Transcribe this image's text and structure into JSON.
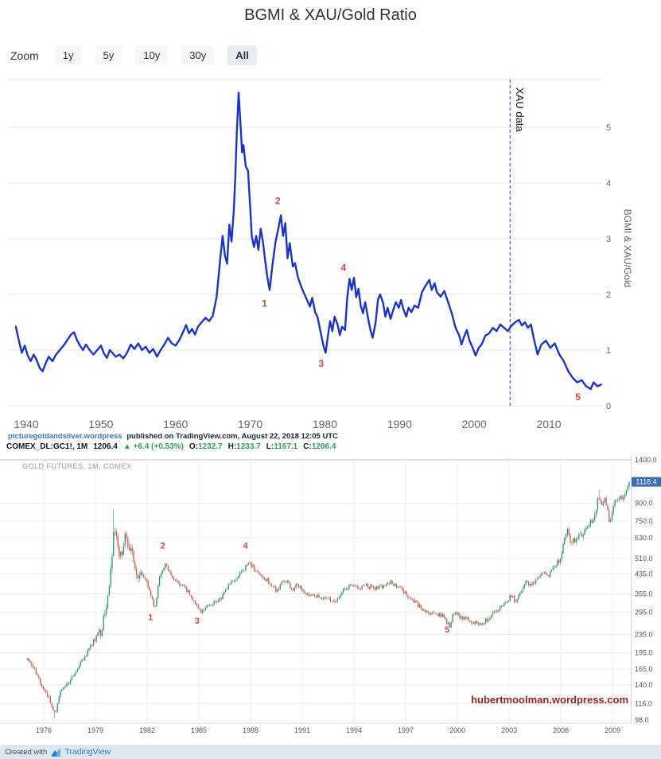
{
  "title": "BGMI & XAU/Gold Ratio",
  "zoom": {
    "label": "Zoom",
    "buttons": [
      "1y",
      "5y",
      "10y",
      "30y",
      "All"
    ],
    "selected": "All"
  },
  "attribution": {
    "source": "picturegoldandsilver.wordpress",
    "rest": "published on TradingView.com, August 22, 2018 12:05 UTC"
  },
  "tv_header": {
    "symbol": "COMEX_DL:GC1!, 1M",
    "last": "1206.4",
    "up_arrow": "▲",
    "change": "+6.4 (+0.53%)",
    "o_label": "O:",
    "o": "1232.7",
    "h_label": "H:",
    "h": "1233.7",
    "l_label": "L:",
    "l": "1167.1",
    "c_label": "C:",
    "c": "1206.4"
  },
  "footer": {
    "created_with": "Created with",
    "brand": "TradingView"
  },
  "colors": {
    "annotation": "#e0443a",
    "grid": "#ececec",
    "axis_text": "#666666"
  },
  "chart_data": [
    {
      "type": "line",
      "title": "BGMI & XAU/Gold Ratio",
      "ylabel": "BGMI & XAU/Gold",
      "y_ticks": [
        0,
        1,
        2,
        3,
        4,
        5
      ],
      "x_ticks": [
        1940,
        1950,
        1960,
        1970,
        1980,
        1990,
        2000,
        2010
      ],
      "x_range": [
        1937.6,
        2017.2
      ],
      "y_range": [
        0,
        5.86
      ],
      "grid": true,
      "legend": "none",
      "line_color": "#1b34d1",
      "vline": {
        "x": 2004.8,
        "label": "XAU data",
        "color": "#2438c8"
      },
      "annotations": [
        {
          "n": "1",
          "x": 1971.9,
          "y": 1.78
        },
        {
          "n": "2",
          "x": 1973.7,
          "y": 3.62
        },
        {
          "n": "3",
          "x": 1979.5,
          "y": 0.7
        },
        {
          "n": "4",
          "x": 1982.5,
          "y": 2.42
        },
        {
          "n": "5",
          "x": 2013.9,
          "y": 0.1
        }
      ],
      "points": [
        [
          1938.6,
          1.42
        ],
        [
          1939,
          1.18
        ],
        [
          1939.4,
          0.95
        ],
        [
          1939.8,
          1.08
        ],
        [
          1940.2,
          0.9
        ],
        [
          1940.6,
          0.8
        ],
        [
          1941,
          0.92
        ],
        [
          1941.4,
          0.82
        ],
        [
          1941.8,
          0.68
        ],
        [
          1942.2,
          0.62
        ],
        [
          1942.6,
          0.76
        ],
        [
          1943,
          0.88
        ],
        [
          1943.5,
          0.8
        ],
        [
          1944,
          0.92
        ],
        [
          1944.5,
          1.0
        ],
        [
          1945,
          1.08
        ],
        [
          1945.5,
          1.18
        ],
        [
          1946,
          1.28
        ],
        [
          1946.4,
          1.32
        ],
        [
          1946.8,
          1.18
        ],
        [
          1947.2,
          1.08
        ],
        [
          1947.6,
          1.0
        ],
        [
          1948,
          1.1
        ],
        [
          1948.5,
          1.0
        ],
        [
          1949,
          0.92
        ],
        [
          1949.5,
          1.0
        ],
        [
          1950,
          1.08
        ],
        [
          1950.4,
          0.94
        ],
        [
          1950.8,
          0.86
        ],
        [
          1951.2,
          1.0
        ],
        [
          1951.6,
          0.94
        ],
        [
          1952,
          0.88
        ],
        [
          1952.5,
          0.92
        ],
        [
          1953,
          0.85
        ],
        [
          1953.5,
          0.95
        ],
        [
          1954,
          1.1
        ],
        [
          1954.5,
          1.02
        ],
        [
          1955,
          1.12
        ],
        [
          1955.5,
          1.0
        ],
        [
          1956,
          1.06
        ],
        [
          1956.5,
          0.95
        ],
        [
          1957,
          1.02
        ],
        [
          1957.5,
          0.88
        ],
        [
          1958,
          1.0
        ],
        [
          1958.5,
          1.1
        ],
        [
          1959,
          1.22
        ],
        [
          1959.5,
          1.12
        ],
        [
          1960,
          1.08
        ],
        [
          1960.5,
          1.18
        ],
        [
          1961,
          1.32
        ],
        [
          1961.4,
          1.45
        ],
        [
          1961.8,
          1.3
        ],
        [
          1962.2,
          1.38
        ],
        [
          1962.6,
          1.28
        ],
        [
          1963,
          1.42
        ],
        [
          1963.5,
          1.5
        ],
        [
          1964,
          1.58
        ],
        [
          1964.5,
          1.52
        ],
        [
          1965,
          1.62
        ],
        [
          1965.5,
          1.95
        ],
        [
          1966,
          2.65
        ],
        [
          1966.3,
          3.05
        ],
        [
          1966.6,
          2.7
        ],
        [
          1966.9,
          2.55
        ],
        [
          1967.2,
          3.25
        ],
        [
          1967.5,
          2.95
        ],
        [
          1967.8,
          3.5
        ],
        [
          1968,
          4.1
        ],
        [
          1968.2,
          4.9
        ],
        [
          1968.45,
          5.62
        ],
        [
          1968.7,
          5.05
        ],
        [
          1968.9,
          4.55
        ],
        [
          1969.1,
          4.68
        ],
        [
          1969.4,
          4.3
        ],
        [
          1969.7,
          4.22
        ],
        [
          1970,
          3.55
        ],
        [
          1970.2,
          3.05
        ],
        [
          1970.5,
          2.85
        ],
        [
          1970.8,
          3.05
        ],
        [
          1971.1,
          2.8
        ],
        [
          1971.4,
          3.18
        ],
        [
          1971.7,
          2.95
        ],
        [
          1972,
          2.6
        ],
        [
          1972.3,
          2.3
        ],
        [
          1972.6,
          2.08
        ],
        [
          1973,
          2.55
        ],
        [
          1973.4,
          2.95
        ],
        [
          1973.8,
          3.2
        ],
        [
          1974.1,
          3.42
        ],
        [
          1974.4,
          3.05
        ],
        [
          1974.7,
          3.28
        ],
        [
          1975,
          2.65
        ],
        [
          1975.3,
          2.92
        ],
        [
          1975.7,
          2.5
        ],
        [
          1976,
          2.56
        ],
        [
          1976.4,
          2.3
        ],
        [
          1976.8,
          2.15
        ],
        [
          1977.2,
          2.02
        ],
        [
          1977.6,
          1.9
        ],
        [
          1978,
          1.78
        ],
        [
          1978.3,
          1.94
        ],
        [
          1978.7,
          1.68
        ],
        [
          1979,
          1.6
        ],
        [
          1979.4,
          1.34
        ],
        [
          1979.8,
          1.08
        ],
        [
          1980.1,
          0.95
        ],
        [
          1980.4,
          1.25
        ],
        [
          1980.7,
          1.52
        ],
        [
          1981,
          1.34
        ],
        [
          1981.3,
          1.6
        ],
        [
          1981.7,
          1.46
        ],
        [
          1982,
          1.27
        ],
        [
          1982.3,
          1.42
        ],
        [
          1982.7,
          1.36
        ],
        [
          1983,
          1.95
        ],
        [
          1983.3,
          2.28
        ],
        [
          1983.6,
          2.08
        ],
        [
          1983.9,
          2.3
        ],
        [
          1984.2,
          1.95
        ],
        [
          1984.5,
          2.1
        ],
        [
          1984.8,
          1.8
        ],
        [
          1985.1,
          1.66
        ],
        [
          1985.4,
          1.86
        ],
        [
          1985.8,
          1.56
        ],
        [
          1986.1,
          1.36
        ],
        [
          1986.4,
          1.22
        ],
        [
          1986.8,
          1.5
        ],
        [
          1987.1,
          1.9
        ],
        [
          1987.4,
          2.0
        ],
        [
          1987.8,
          1.84
        ],
        [
          1988.1,
          1.6
        ],
        [
          1988.4,
          1.76
        ],
        [
          1988.8,
          1.56
        ],
        [
          1989.1,
          1.7
        ],
        [
          1989.5,
          1.86
        ],
        [
          1989.9,
          1.76
        ],
        [
          1990.2,
          1.9
        ],
        [
          1990.5,
          1.74
        ],
        [
          1990.9,
          1.6
        ],
        [
          1991.2,
          1.76
        ],
        [
          1991.6,
          1.68
        ],
        [
          1992,
          1.8
        ],
        [
          1992.5,
          1.76
        ],
        [
          1993,
          2.04
        ],
        [
          1993.5,
          2.16
        ],
        [
          1994,
          2.26
        ],
        [
          1994.3,
          2.08
        ],
        [
          1994.7,
          2.2
        ],
        [
          1995,
          2.04
        ],
        [
          1995.5,
          1.96
        ],
        [
          1996,
          2.06
        ],
        [
          1996.5,
          1.86
        ],
        [
          1997,
          1.66
        ],
        [
          1997.5,
          1.4
        ],
        [
          1998,
          1.26
        ],
        [
          1998.3,
          1.1
        ],
        [
          1998.7,
          1.26
        ],
        [
          1999,
          1.36
        ],
        [
          1999.4,
          1.16
        ],
        [
          1999.8,
          1.04
        ],
        [
          2000.2,
          0.9
        ],
        [
          2000.6,
          1.04
        ],
        [
          2001,
          1.1
        ],
        [
          2001.5,
          1.26
        ],
        [
          2002,
          1.3
        ],
        [
          2002.5,
          1.4
        ],
        [
          2003,
          1.34
        ],
        [
          2003.5,
          1.46
        ],
        [
          2004,
          1.4
        ],
        [
          2004.5,
          1.34
        ],
        [
          2005,
          1.44
        ],
        [
          2005.5,
          1.5
        ],
        [
          2006,
          1.54
        ],
        [
          2006.4,
          1.44
        ],
        [
          2006.8,
          1.5
        ],
        [
          2007.2,
          1.4
        ],
        [
          2007.6,
          1.46
        ],
        [
          2008,
          1.2
        ],
        [
          2008.5,
          0.92
        ],
        [
          2009,
          1.1
        ],
        [
          2009.6,
          1.17
        ],
        [
          2010.2,
          1.04
        ],
        [
          2010.8,
          1.12
        ],
        [
          2011.4,
          0.92
        ],
        [
          2012,
          0.8
        ],
        [
          2012.6,
          0.62
        ],
        [
          2013.2,
          0.5
        ],
        [
          2013.8,
          0.42
        ],
        [
          2014.4,
          0.46
        ],
        [
          2015,
          0.35
        ],
        [
          2015.6,
          0.3
        ],
        [
          2016,
          0.42
        ],
        [
          2016.5,
          0.35
        ],
        [
          2017,
          0.38
        ]
      ]
    },
    {
      "type": "candlestick",
      "watermark": "GOLD FUTURES, 1M, COMEX",
      "interval": "monthly",
      "y_scale": "log",
      "y_range": [
        98,
        1400
      ],
      "x_range": [
        1975.0,
        2010.1
      ],
      "price_ticks": [
        1400,
        900,
        750,
        630,
        510,
        435,
        355,
        295,
        235,
        195,
        165,
        140,
        116,
        98
      ],
      "x_ticks": [
        1976,
        1979,
        1982,
        1985,
        1988,
        1991,
        1994,
        1997,
        2000,
        2003,
        2006,
        2009
      ],
      "last_price": 1118.4,
      "up_color": "#2f9168",
      "down_color": "#d4544d",
      "badge_color": "#3b6fae",
      "url_label": "hubertmoolman.wordpress.com",
      "annotations": [
        {
          "n": "1",
          "x": 1982.2,
          "y": 272
        },
        {
          "n": "2",
          "x": 1982.9,
          "y": 565
        },
        {
          "n": "3",
          "x": 1984.9,
          "y": 262
        },
        {
          "n": "4",
          "x": 1987.7,
          "y": 565
        },
        {
          "n": "5",
          "x": 1999.4,
          "y": 240
        }
      ],
      "wick_overrides": [
        [
          1980.05,
          850,
          "h"
        ],
        [
          2008.22,
          1033,
          "h"
        ],
        [
          1976.63,
          100,
          "l"
        ]
      ],
      "anchors": [
        [
          1975.0,
          183
        ],
        [
          1975.4,
          167
        ],
        [
          1975.8,
          142
        ],
        [
          1976.2,
          128
        ],
        [
          1976.65,
          104
        ],
        [
          1977.0,
          132
        ],
        [
          1977.5,
          146
        ],
        [
          1978.0,
          168
        ],
        [
          1978.5,
          193
        ],
        [
          1978.9,
          220
        ],
        [
          1979.3,
          245
        ],
        [
          1979.6,
          300
        ],
        [
          1979.85,
          400
        ],
        [
          1980.04,
          660
        ],
        [
          1980.2,
          630
        ],
        [
          1980.45,
          515
        ],
        [
          1980.7,
          635
        ],
        [
          1980.9,
          595
        ],
        [
          1981.2,
          500
        ],
        [
          1981.5,
          420
        ],
        [
          1981.8,
          430
        ],
        [
          1982.1,
          375
        ],
        [
          1982.45,
          302
        ],
        [
          1982.7,
          420
        ],
        [
          1982.9,
          450
        ],
        [
          1983.1,
          492
        ],
        [
          1983.4,
          425
        ],
        [
          1983.8,
          395
        ],
        [
          1984.2,
          380
        ],
        [
          1984.6,
          342
        ],
        [
          1985.15,
          290
        ],
        [
          1985.5,
          315
        ],
        [
          1985.9,
          328
        ],
        [
          1986.3,
          342
        ],
        [
          1986.7,
          390
        ],
        [
          1987.1,
          405
        ],
        [
          1987.5,
          452
        ],
        [
          1987.95,
          488
        ],
        [
          1988.3,
          452
        ],
        [
          1988.7,
          430
        ],
        [
          1989.2,
          388
        ],
        [
          1989.5,
          368
        ],
        [
          1989.9,
          402
        ],
        [
          1990.1,
          412
        ],
        [
          1990.45,
          362
        ],
        [
          1990.65,
          388
        ],
        [
          1990.9,
          378
        ],
        [
          1991.3,
          358
        ],
        [
          1991.7,
          352
        ],
        [
          1992.1,
          344
        ],
        [
          1992.6,
          336
        ],
        [
          1993.0,
          330
        ],
        [
          1993.4,
          372
        ],
        [
          1993.8,
          385
        ],
        [
          1994.2,
          382
        ],
        [
          1994.7,
          386
        ],
        [
          1995.2,
          378
        ],
        [
          1995.7,
          384
        ],
        [
          1996.1,
          402
        ],
        [
          1996.6,
          384
        ],
        [
          1997.1,
          348
        ],
        [
          1997.6,
          324
        ],
        [
          1998.1,
          296
        ],
        [
          1998.6,
          288
        ],
        [
          1999.1,
          286
        ],
        [
          1999.55,
          254
        ],
        [
          1999.75,
          298
        ],
        [
          2000.0,
          286
        ],
        [
          2000.4,
          278
        ],
        [
          2000.9,
          268
        ],
        [
          2001.3,
          260
        ],
        [
          2001.8,
          276
        ],
        [
          2002.2,
          296
        ],
        [
          2002.7,
          316
        ],
        [
          2003.1,
          348
        ],
        [
          2003.4,
          330
        ],
        [
          2003.95,
          402
        ],
        [
          2004.3,
          392
        ],
        [
          2004.95,
          438
        ],
        [
          2005.3,
          428
        ],
        [
          2005.95,
          512
        ],
        [
          2006.35,
          700
        ],
        [
          2006.6,
          605
        ],
        [
          2006.95,
          632
        ],
        [
          2007.35,
          668
        ],
        [
          2007.7,
          735
        ],
        [
          2007.95,
          800
        ],
        [
          2008.2,
          968
        ],
        [
          2008.4,
          890
        ],
        [
          2008.55,
          930
        ],
        [
          2008.85,
          732
        ],
        [
          2009.1,
          895
        ],
        [
          2009.4,
          925
        ],
        [
          2009.7,
          995
        ],
        [
          2009.9,
          1085
        ],
        [
          2010.0,
          1118.4
        ]
      ]
    }
  ]
}
